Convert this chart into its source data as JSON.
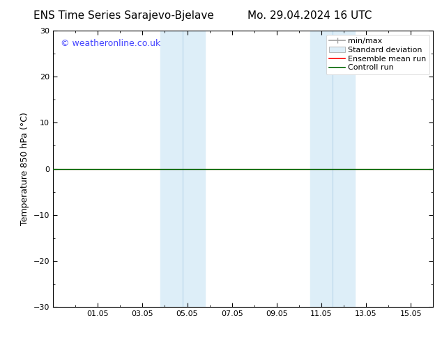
{
  "title_left": "ENS Time Series Sarajevo-Bjelave",
  "title_right": "Mo. 29.04.2024 16 UTC",
  "ylabel": "Temperature 850 hPa (°C)",
  "ylim": [
    -30,
    30
  ],
  "yticks": [
    -30,
    -20,
    -10,
    0,
    10,
    20,
    30
  ],
  "xtick_labels": [
    "01.05",
    "03.05",
    "05.05",
    "07.05",
    "09.05",
    "11.05",
    "13.05",
    "15.05"
  ],
  "xtick_positions": [
    2,
    4,
    6,
    8,
    10,
    12,
    14,
    16
  ],
  "xlim": [
    0,
    17
  ],
  "bg_color": "#ffffff",
  "plot_bg_color": "#ffffff",
  "shaded_bands": [
    {
      "xstart": 5.0,
      "xend": 5.5,
      "color": "#ddeef8"
    },
    {
      "xstart": 5.5,
      "xend": 6.5,
      "color": "#ddeef8"
    },
    {
      "xstart": 11.5,
      "xend": 12.0,
      "color": "#ddeef8"
    },
    {
      "xstart": 12.0,
      "xend": 13.0,
      "color": "#ddeef8"
    }
  ],
  "shaded_bands_v2": [
    {
      "xstart": 4.8,
      "xend": 6.8,
      "color": "#ddeef8"
    },
    {
      "xstart": 11.5,
      "xend": 13.5,
      "color": "#ddeef8"
    }
  ],
  "control_run_y": 0.0,
  "control_run_color": "#006400",
  "ensemble_mean_color": "#ff0000",
  "min_max_color": "#a0a0a0",
  "std_dev_color": "#ddeef8",
  "watermark_text": "© weatheronline.co.uk",
  "watermark_color": "#4444ff",
  "watermark_fontsize": 9,
  "title_fontsize": 11,
  "axis_label_fontsize": 9,
  "tick_fontsize": 8,
  "legend_fontsize": 8
}
